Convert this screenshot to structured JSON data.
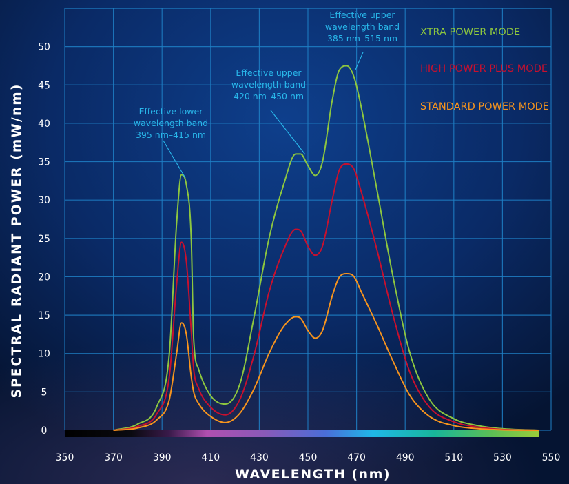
{
  "chart_data": {
    "type": "line",
    "title": "",
    "xlabel": "WAVELENGTH (nm)",
    "ylabel": "SPECTRAL RADIANT POWER (mW/nm)",
    "xlim": [
      350,
      550
    ],
    "ylim": [
      0,
      55
    ],
    "x_ticks": [
      350,
      370,
      390,
      410,
      430,
      450,
      470,
      490,
      510,
      530,
      550
    ],
    "y_ticks": [
      0,
      5,
      10,
      15,
      20,
      25,
      30,
      35,
      40,
      45,
      50
    ],
    "grid": true,
    "legend_position": "top-right",
    "colors": {
      "background": "#05163a",
      "grid": "#1e7fc4",
      "xtra": "#8dc63f",
      "high_plus": "#c8102e",
      "standard": "#f7941d",
      "annotation": "#29b7ea"
    },
    "x": [
      370,
      380,
      388,
      393,
      396,
      398,
      400,
      402,
      403,
      405,
      410,
      416,
      422,
      428,
      434,
      440,
      445,
      447,
      450,
      453,
      456,
      460,
      463,
      466,
      469,
      472,
      478,
      485,
      492,
      500,
      510,
      520,
      530,
      545
    ],
    "series": [
      {
        "name": "XTRA POWER MODE",
        "color": "#8dc63f",
        "values": [
          0,
          0.8,
          3.2,
          10,
          27,
          33.3,
          32,
          25,
          12,
          8,
          4.5,
          3.4,
          6,
          15,
          25,
          32,
          36,
          36,
          34.5,
          33.2,
          35,
          43,
          47,
          47.5,
          46,
          42,
          32,
          20,
          10,
          4,
          1.5,
          0.6,
          0.2,
          0
        ]
      },
      {
        "name": "HIGH POWER PLUS MODE",
        "color": "#c8102e",
        "values": [
          0,
          0.5,
          2.2,
          7,
          19,
          24.5,
          22,
          13,
          8,
          5.5,
          3,
          2,
          4,
          10,
          18,
          23.5,
          26.2,
          26,
          24,
          22.8,
          24,
          30,
          34,
          34.7,
          34,
          31,
          24,
          15,
          7.5,
          3,
          1.1,
          0.4,
          0.1,
          0
        ]
      },
      {
        "name": "STANDARD POWER MODE",
        "color": "#f7941d",
        "values": [
          0,
          0.3,
          1.4,
          4,
          10,
          14,
          12.5,
          7,
          5,
          3.5,
          1.8,
          1,
          2.2,
          5.5,
          10,
          13.5,
          14.8,
          14.6,
          13,
          12,
          13,
          17.5,
          20,
          20.4,
          20,
          18,
          14,
          9,
          4.5,
          1.8,
          0.6,
          0.2,
          0.05,
          0
        ]
      }
    ],
    "annotations": [
      {
        "lines": [
          "Effective lower",
          "wavelength band",
          "395 nm–415 nm"
        ],
        "point": [
          399,
          33.3
        ]
      },
      {
        "lines": [
          "Effective upper",
          "wavelength band",
          "420 nm–450 nm"
        ],
        "point": [
          447,
          36
        ]
      },
      {
        "lines": [
          "Effective upper",
          "wavelength band",
          "385 nm–515 nm"
        ],
        "point": [
          466,
          47.5
        ]
      }
    ]
  }
}
